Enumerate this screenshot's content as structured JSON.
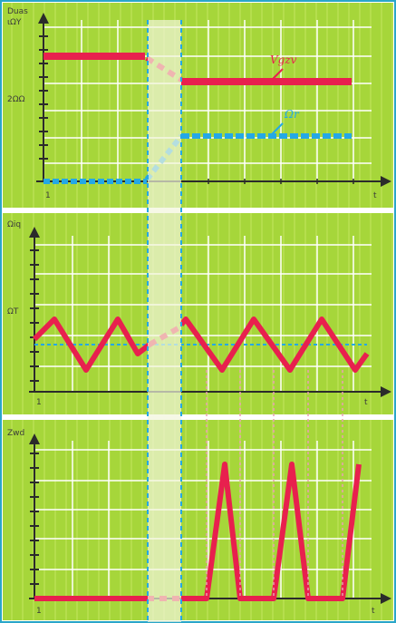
{
  "colors": {
    "panel_bg": "#a6d63a",
    "grid_line": "#ffffff",
    "axis": "#2b2b2b",
    "red_trace": "#e8204e",
    "blue_trace": "#24a8e6",
    "transition_band": "#f2f5dc",
    "border": "#2aa6c8",
    "dotted_guide": "#e8a0b0"
  },
  "panel_top": {
    "y_axis_label_line1": "Duas",
    "y_axis_label_line2": "ιΩΥ",
    "mid_tick_label": "2ΩΩ",
    "x_origin_label": "1",
    "x_end_label": "t",
    "red_trace_label": "Vgzv",
    "blue_trace_label": "Ωr"
  },
  "panel_middle": {
    "y_axis_label": "Ωiq",
    "mid_tick_label": "ΩΤ",
    "x_origin_label": "1",
    "x_end_label": "t"
  },
  "panel_bottom": {
    "y_axis_label": "Ζwd",
    "x_origin_label": "1",
    "x_end_label": "t"
  },
  "icons": {
    "axis_arrow": "triangle-arrow-icon"
  }
}
